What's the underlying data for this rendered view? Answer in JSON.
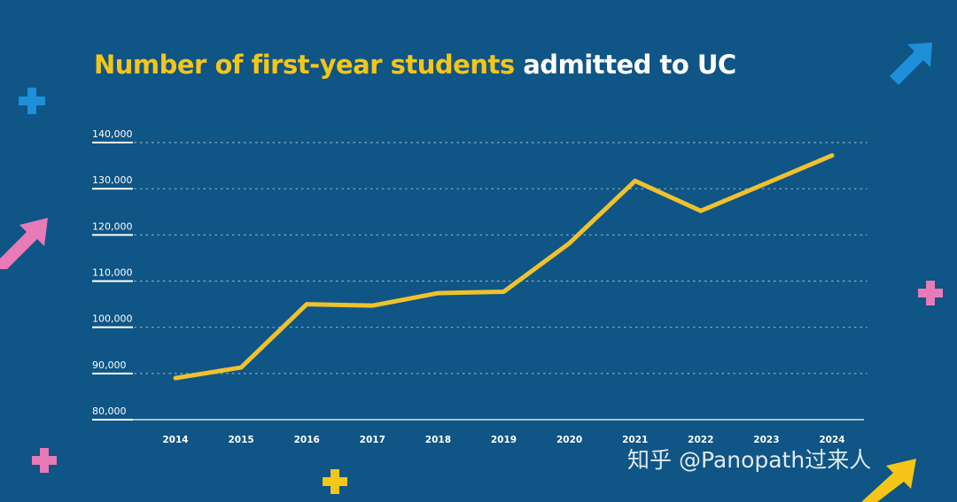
{
  "title": {
    "highlight": "Number of first-year students",
    "rest": "admitted to UC"
  },
  "watermark": "知乎 @Panopath过来人",
  "colors": {
    "background": "#0f5585",
    "line": "#f0c12e",
    "title_highlight": "#f5c518",
    "plus_blue": "#1e8fd9",
    "plus_pink": "#e87ab8",
    "plus_yellow": "#f5c518",
    "arrow_blue": "#1e8fd9",
    "arrow_pink": "#e87ab8",
    "arrow_yellow": "#f5c518"
  },
  "chart_data": {
    "type": "line",
    "title": "Number of first-year students admitted to UC",
    "xlabel": "",
    "ylabel": "",
    "categories": [
      "2014",
      "2015",
      "2016",
      "2017",
      "2018",
      "2019",
      "2020",
      "2021",
      "2022",
      "2023",
      "2024"
    ],
    "series": [
      {
        "values": [
          89000,
          91300,
          105000,
          104700,
          107400,
          107700,
          118200,
          131700,
          125200,
          131200,
          137200
        ]
      }
    ],
    "ylim": [
      80000,
      140000
    ],
    "yticks": [
      "80,000",
      "90,000",
      "100,000",
      "110,000",
      "120,000",
      "130,000",
      "140,000"
    ],
    "grid": true,
    "legend": "none"
  }
}
